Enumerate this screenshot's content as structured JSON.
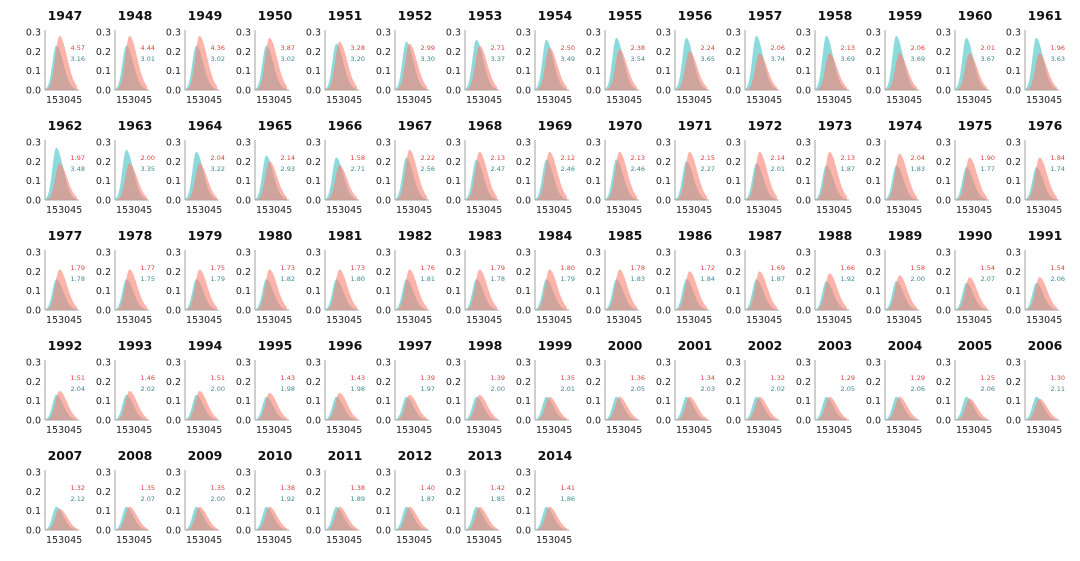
{
  "chart_data": {
    "type": "area",
    "description": "Small multiples of overlapping density curves per year",
    "colors": {
      "series_a": "#fa8072",
      "series_b": "#66cdd0",
      "series_a_text": "#e03c3c",
      "series_b_text": "#3a8a8c"
    },
    "yticks": [
      "0.0",
      "0.1",
      "0.2",
      "0.3"
    ],
    "ylim": [
      0,
      0.3
    ],
    "xtick_label": "153045",
    "panels": [
      {
        "year": "1947",
        "a": "4.57",
        "b": "3.16",
        "peak_a": 0.28,
        "peak_b": 0.23
      },
      {
        "year": "1948",
        "a": "4.44",
        "b": "3.01",
        "peak_a": 0.28,
        "peak_b": 0.23
      },
      {
        "year": "1949",
        "a": "4.36",
        "b": "3.02",
        "peak_a": 0.28,
        "peak_b": 0.23
      },
      {
        "year": "1950",
        "a": "3.87",
        "b": "3.02",
        "peak_a": 0.27,
        "peak_b": 0.23
      },
      {
        "year": "1951",
        "a": "3.28",
        "b": "3.20",
        "peak_a": 0.25,
        "peak_b": 0.24
      },
      {
        "year": "1952",
        "a": "2.99",
        "b": "3.30",
        "peak_a": 0.24,
        "peak_b": 0.25
      },
      {
        "year": "1953",
        "a": "2.71",
        "b": "3.37",
        "peak_a": 0.23,
        "peak_b": 0.26
      },
      {
        "year": "1954",
        "a": "2.50",
        "b": "3.49",
        "peak_a": 0.22,
        "peak_b": 0.26
      },
      {
        "year": "1955",
        "a": "2.38",
        "b": "3.54",
        "peak_a": 0.21,
        "peak_b": 0.27
      },
      {
        "year": "1956",
        "a": "2.24",
        "b": "3.65",
        "peak_a": 0.2,
        "peak_b": 0.27
      },
      {
        "year": "1957",
        "a": "2.06",
        "b": "3.74",
        "peak_a": 0.19,
        "peak_b": 0.28
      },
      {
        "year": "1958",
        "a": "2.13",
        "b": "3.69",
        "peak_a": 0.19,
        "peak_b": 0.28
      },
      {
        "year": "1959",
        "a": "2.06",
        "b": "3.69",
        "peak_a": 0.19,
        "peak_b": 0.28
      },
      {
        "year": "1960",
        "a": "2.01",
        "b": "3.67",
        "peak_a": 0.19,
        "peak_b": 0.27
      },
      {
        "year": "1961",
        "a": "1.96",
        "b": "3.63",
        "peak_a": 0.19,
        "peak_b": 0.27
      },
      {
        "year": "1962",
        "a": "1.97",
        "b": "3.48",
        "peak_a": 0.19,
        "peak_b": 0.27
      },
      {
        "year": "1963",
        "a": "2.00",
        "b": "3.35",
        "peak_a": 0.19,
        "peak_b": 0.26
      },
      {
        "year": "1964",
        "a": "2.04",
        "b": "3.22",
        "peak_a": 0.19,
        "peak_b": 0.25
      },
      {
        "year": "1965",
        "a": "2.14",
        "b": "2.93",
        "peak_a": 0.2,
        "peak_b": 0.23
      },
      {
        "year": "1966",
        "a": "1.58",
        "b": "2.71",
        "peak_a": 0.18,
        "peak_b": 0.22
      },
      {
        "year": "1967",
        "a": "2.22",
        "b": "2.56",
        "peak_a": 0.26,
        "peak_b": 0.22
      },
      {
        "year": "1968",
        "a": "2.13",
        "b": "2.47",
        "peak_a": 0.25,
        "peak_b": 0.21
      },
      {
        "year": "1969",
        "a": "2.12",
        "b": "2.46",
        "peak_a": 0.25,
        "peak_b": 0.21
      },
      {
        "year": "1970",
        "a": "2.13",
        "b": "2.46",
        "peak_a": 0.25,
        "peak_b": 0.21
      },
      {
        "year": "1971",
        "a": "2.15",
        "b": "2.27",
        "peak_a": 0.25,
        "peak_b": 0.2
      },
      {
        "year": "1972",
        "a": "2.14",
        "b": "2.01",
        "peak_a": 0.25,
        "peak_b": 0.19
      },
      {
        "year": "1973",
        "a": "2.13",
        "b": "1.87",
        "peak_a": 0.25,
        "peak_b": 0.18
      },
      {
        "year": "1974",
        "a": "2.04",
        "b": "1.83",
        "peak_a": 0.24,
        "peak_b": 0.18
      },
      {
        "year": "1975",
        "a": "1.90",
        "b": "1.77",
        "peak_a": 0.22,
        "peak_b": 0.17
      },
      {
        "year": "1976",
        "a": "1.84",
        "b": "1.74",
        "peak_a": 0.22,
        "peak_b": 0.17
      },
      {
        "year": "1977",
        "a": "1.79",
        "b": "1.78",
        "peak_a": 0.21,
        "peak_b": 0.16
      },
      {
        "year": "1978",
        "a": "1.77",
        "b": "1.75",
        "peak_a": 0.21,
        "peak_b": 0.16
      },
      {
        "year": "1979",
        "a": "1.75",
        "b": "1.79",
        "peak_a": 0.21,
        "peak_b": 0.16
      },
      {
        "year": "1980",
        "a": "1.73",
        "b": "1.82",
        "peak_a": 0.21,
        "peak_b": 0.16
      },
      {
        "year": "1981",
        "a": "1.73",
        "b": "1.80",
        "peak_a": 0.21,
        "peak_b": 0.16
      },
      {
        "year": "1982",
        "a": "1.76",
        "b": "1.81",
        "peak_a": 0.21,
        "peak_b": 0.16
      },
      {
        "year": "1983",
        "a": "1.79",
        "b": "1.78",
        "peak_a": 0.21,
        "peak_b": 0.16
      },
      {
        "year": "1984",
        "a": "1.80",
        "b": "1.79",
        "peak_a": 0.21,
        "peak_b": 0.16
      },
      {
        "year": "1985",
        "a": "1.78",
        "b": "1.83",
        "peak_a": 0.21,
        "peak_b": 0.16
      },
      {
        "year": "1986",
        "a": "1.72",
        "b": "1.84",
        "peak_a": 0.2,
        "peak_b": 0.16
      },
      {
        "year": "1987",
        "a": "1.69",
        "b": "1.87",
        "peak_a": 0.2,
        "peak_b": 0.16
      },
      {
        "year": "1988",
        "a": "1.66",
        "b": "1.92",
        "peak_a": 0.19,
        "peak_b": 0.15
      },
      {
        "year": "1989",
        "a": "1.58",
        "b": "2.00",
        "peak_a": 0.18,
        "peak_b": 0.15
      },
      {
        "year": "1990",
        "a": "1.54",
        "b": "2.07",
        "peak_a": 0.17,
        "peak_b": 0.14
      },
      {
        "year": "1991",
        "a": "1.54",
        "b": "2.06",
        "peak_a": 0.17,
        "peak_b": 0.14
      },
      {
        "year": "1992",
        "a": "1.51",
        "b": "2.04",
        "peak_a": 0.15,
        "peak_b": 0.13
      },
      {
        "year": "1993",
        "a": "1.46",
        "b": "2.02",
        "peak_a": 0.15,
        "peak_b": 0.13
      },
      {
        "year": "1994",
        "a": "1.51",
        "b": "2.00",
        "peak_a": 0.15,
        "peak_b": 0.13
      },
      {
        "year": "1995",
        "a": "1.43",
        "b": "1.98",
        "peak_a": 0.14,
        "peak_b": 0.12
      },
      {
        "year": "1996",
        "a": "1.43",
        "b": "1.98",
        "peak_a": 0.14,
        "peak_b": 0.12
      },
      {
        "year": "1997",
        "a": "1.39",
        "b": "1.97",
        "peak_a": 0.13,
        "peak_b": 0.12
      },
      {
        "year": "1998",
        "a": "1.39",
        "b": "2.00",
        "peak_a": 0.13,
        "peak_b": 0.12
      },
      {
        "year": "1999",
        "a": "1.35",
        "b": "2.01",
        "peak_a": 0.12,
        "peak_b": 0.12
      },
      {
        "year": "2000",
        "a": "1.36",
        "b": "2.05",
        "peak_a": 0.12,
        "peak_b": 0.12
      },
      {
        "year": "2001",
        "a": "1.34",
        "b": "2.03",
        "peak_a": 0.12,
        "peak_b": 0.12
      },
      {
        "year": "2002",
        "a": "1.32",
        "b": "2.02",
        "peak_a": 0.12,
        "peak_b": 0.12
      },
      {
        "year": "2003",
        "a": "1.29",
        "b": "2.05",
        "peak_a": 0.12,
        "peak_b": 0.12
      },
      {
        "year": "2004",
        "a": "1.29",
        "b": "2.06",
        "peak_a": 0.12,
        "peak_b": 0.12
      },
      {
        "year": "2005",
        "a": "1.25",
        "b": "2.06",
        "peak_a": 0.11,
        "peak_b": 0.12
      },
      {
        "year": "2006",
        "a": "1.30",
        "b": "2.11",
        "peak_a": 0.11,
        "peak_b": 0.12
      },
      {
        "year": "2007",
        "a": "1.32",
        "b": "2.12",
        "peak_a": 0.11,
        "peak_b": 0.12
      },
      {
        "year": "2008",
        "a": "1.35",
        "b": "2.07",
        "peak_a": 0.12,
        "peak_b": 0.12
      },
      {
        "year": "2009",
        "a": "1.35",
        "b": "2.00",
        "peak_a": 0.12,
        "peak_b": 0.12
      },
      {
        "year": "2010",
        "a": "1.38",
        "b": "1.92",
        "peak_a": 0.12,
        "peak_b": 0.12
      },
      {
        "year": "2011",
        "a": "1.38",
        "b": "1.89",
        "peak_a": 0.12,
        "peak_b": 0.12
      },
      {
        "year": "2012",
        "a": "1.40",
        "b": "1.87",
        "peak_a": 0.12,
        "peak_b": 0.12
      },
      {
        "year": "2013",
        "a": "1.42",
        "b": "1.85",
        "peak_a": 0.12,
        "peak_b": 0.12
      },
      {
        "year": "2014",
        "a": "1.41",
        "b": "1.86",
        "peak_a": 0.12,
        "peak_b": 0.12
      }
    ]
  }
}
